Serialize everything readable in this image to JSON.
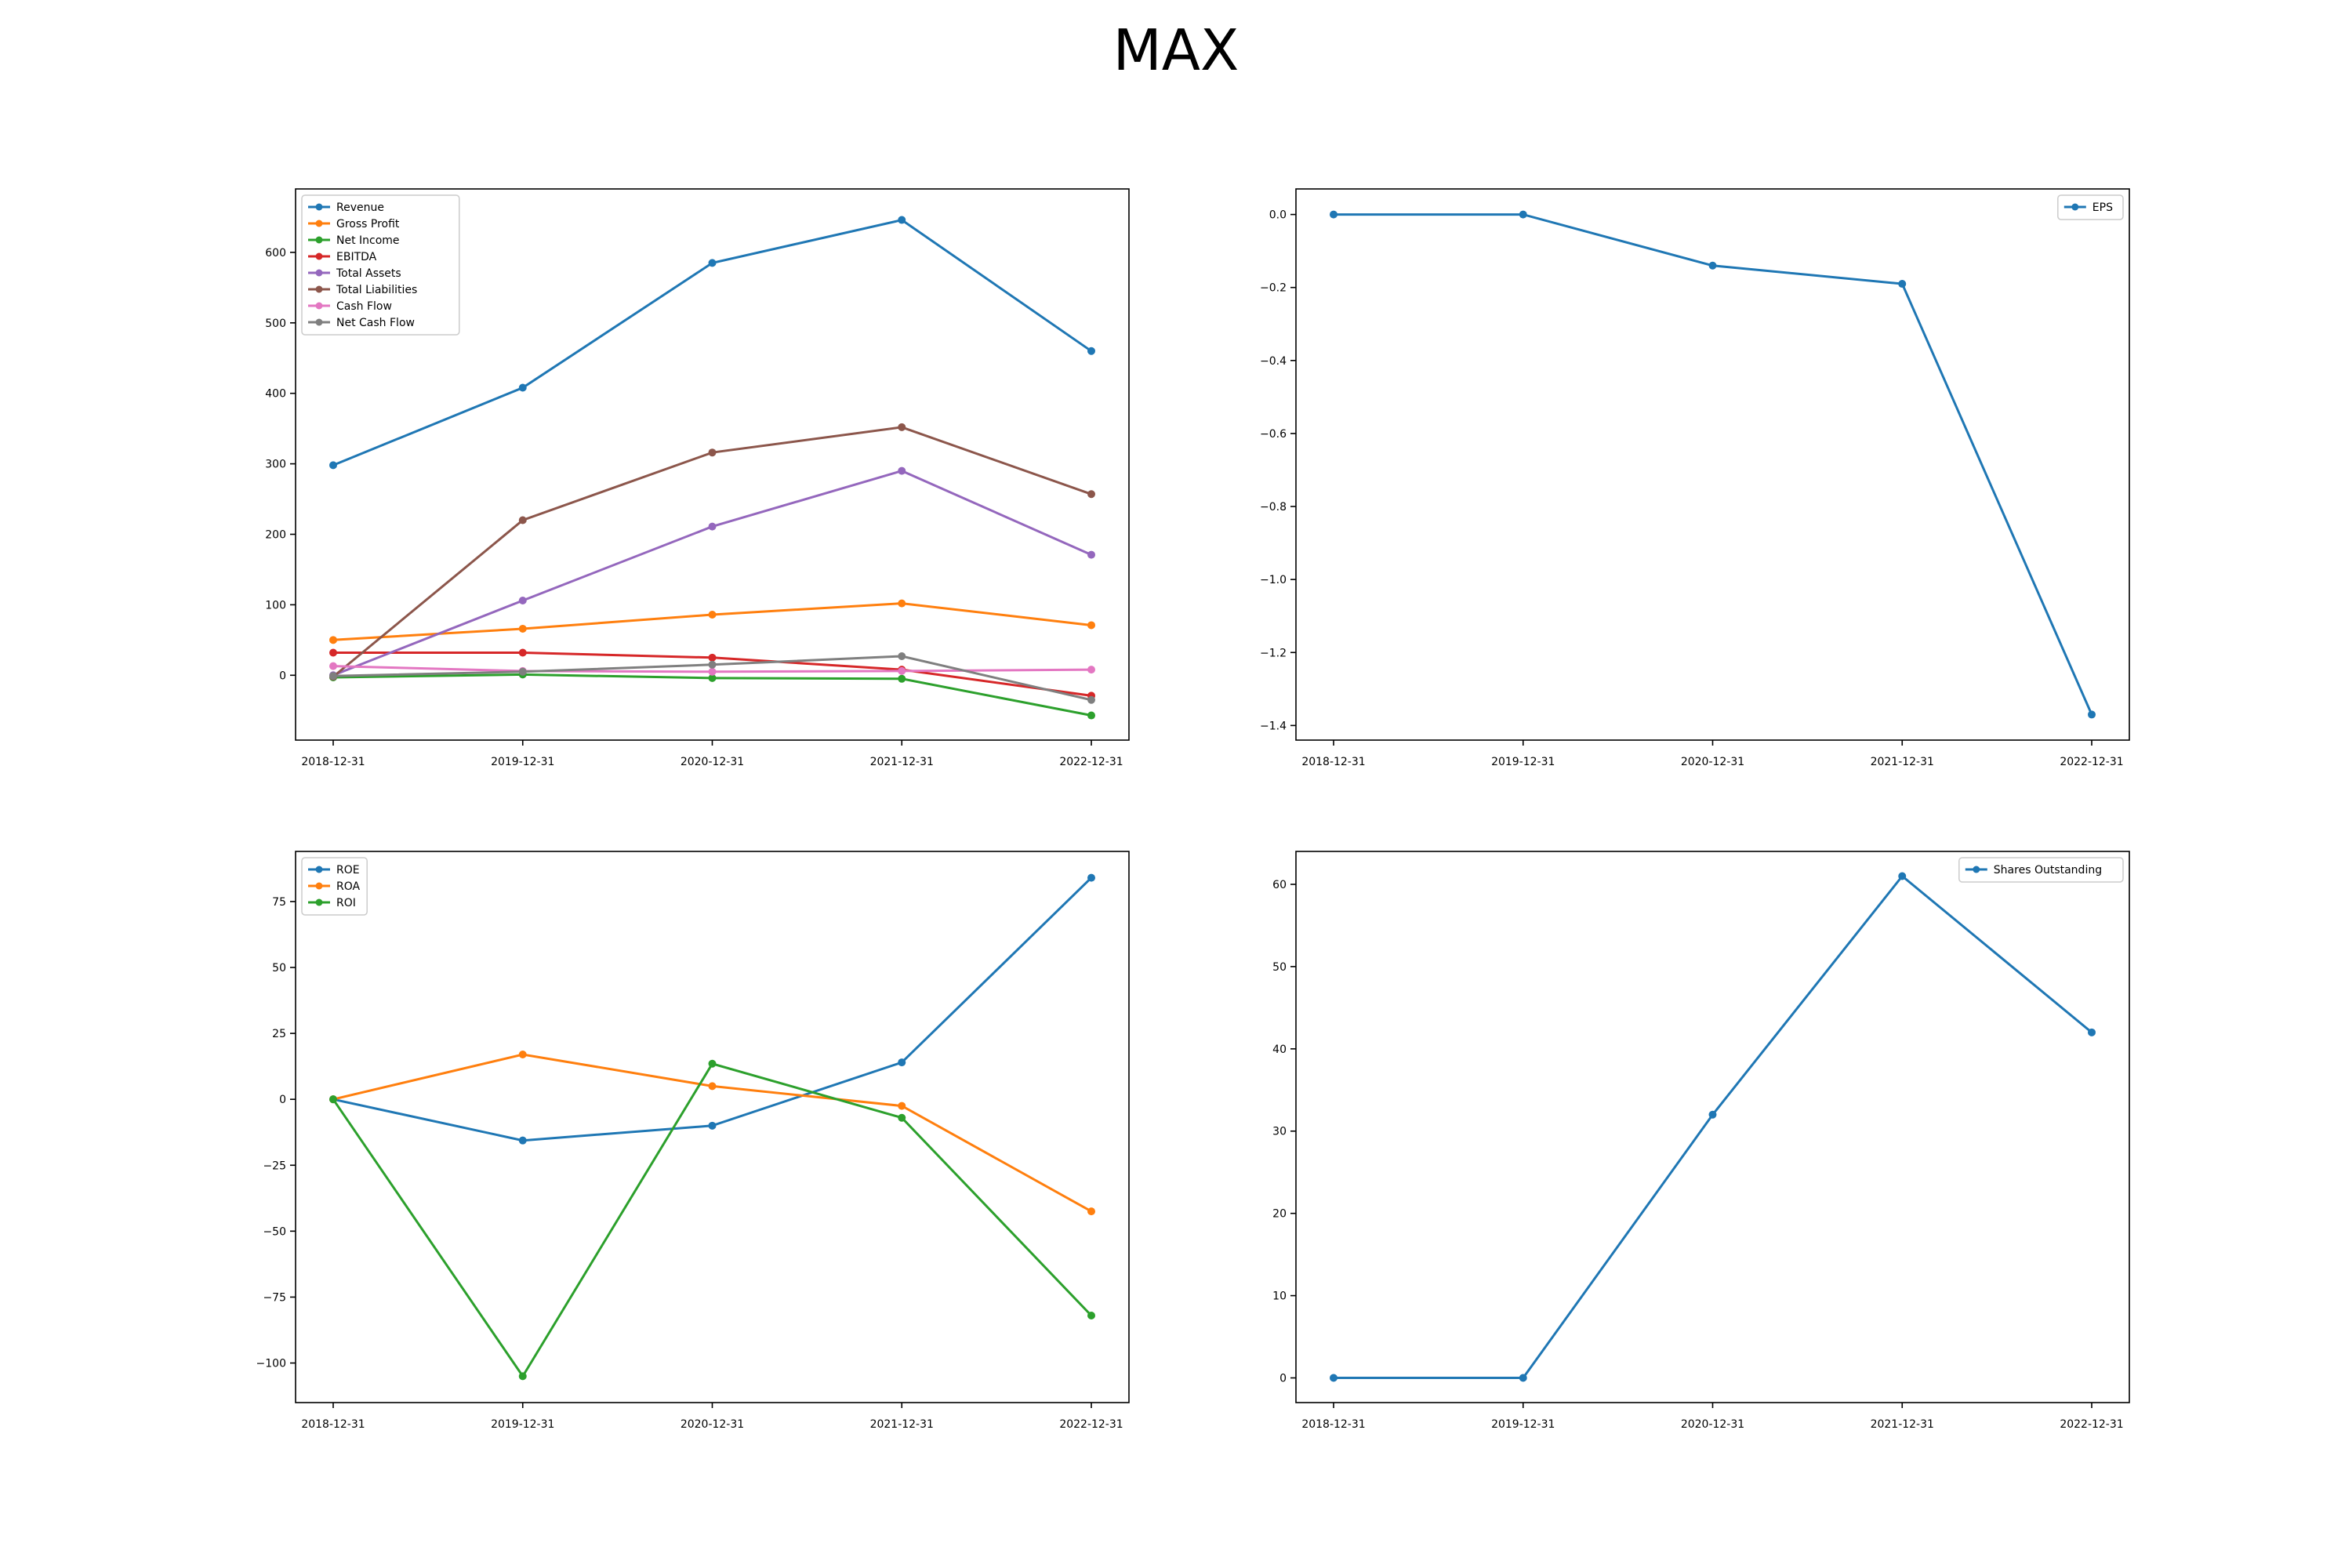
{
  "title": "MAX",
  "chart_data": [
    {
      "type": "line",
      "x": [
        "2018-12-31",
        "2019-12-31",
        "2020-12-31",
        "2021-12-31",
        "2022-12-31"
      ],
      "ylim": [
        -92,
        690
      ],
      "yticks": [
        0,
        100,
        200,
        300,
        400,
        500,
        600
      ],
      "ytick_labels": [
        "0",
        "100",
        "200",
        "300",
        "400",
        "500",
        "600"
      ],
      "legend": "top-left",
      "series": [
        {
          "name": "Revenue",
          "color": "#1f77b4",
          "values": [
            298,
            408,
            585,
            646,
            460
          ]
        },
        {
          "name": "Gross Profit",
          "color": "#ff7f0e",
          "values": [
            50,
            66,
            86,
            102,
            71
          ]
        },
        {
          "name": "Net Income",
          "color": "#2ca02c",
          "values": [
            -3,
            1,
            -4,
            -5,
            -57
          ]
        },
        {
          "name": "EBITDA",
          "color": "#d62728",
          "values": [
            32,
            32,
            25,
            8,
            -29
          ]
        },
        {
          "name": "Total Assets",
          "color": "#9467bd",
          "values": [
            0,
            106,
            211,
            290,
            171
          ]
        },
        {
          "name": "Total Liabilities",
          "color": "#8c564b",
          "values": [
            -2,
            220,
            316,
            352,
            257
          ]
        },
        {
          "name": "Cash Flow",
          "color": "#e377c2",
          "values": [
            13,
            6,
            5,
            6,
            8
          ]
        },
        {
          "name": "Net Cash Flow",
          "color": "#7f7f7f",
          "values": [
            -1,
            5,
            15,
            27,
            -35
          ]
        }
      ]
    },
    {
      "type": "line",
      "x": [
        "2018-12-31",
        "2019-12-31",
        "2020-12-31",
        "2021-12-31",
        "2022-12-31"
      ],
      "ylim": [
        -1.44,
        0.07
      ],
      "yticks": [
        0.0,
        -0.2,
        -0.4,
        -0.6,
        -0.8,
        -1.0,
        -1.2,
        -1.4
      ],
      "ytick_labels": [
        "0.0",
        "−0.2",
        "−0.4",
        "−0.6",
        "−0.8",
        "−1.0",
        "−1.2",
        "−1.4"
      ],
      "legend": "top-right",
      "series": [
        {
          "name": "EPS",
          "color": "#1f77b4",
          "values": [
            0.0,
            0.0,
            -0.14,
            -0.19,
            -1.37
          ]
        }
      ]
    },
    {
      "type": "line",
      "x": [
        "2018-12-31",
        "2019-12-31",
        "2020-12-31",
        "2021-12-31",
        "2022-12-31"
      ],
      "ylim": [
        -115,
        94
      ],
      "yticks": [
        75,
        50,
        25,
        0,
        -25,
        -50,
        -75,
        -100
      ],
      "ytick_labels": [
        "75",
        "50",
        "25",
        "0",
        "−25",
        "−50",
        "−75",
        "−100"
      ],
      "legend": "top-left",
      "series": [
        {
          "name": "ROE",
          "color": "#1f77b4",
          "values": [
            0,
            -15.6,
            -10,
            14,
            84
          ]
        },
        {
          "name": "ROA",
          "color": "#ff7f0e",
          "values": [
            0,
            17,
            5,
            -2.5,
            -42.5
          ]
        },
        {
          "name": "ROI",
          "color": "#2ca02c",
          "values": [
            0,
            -105,
            13.5,
            -7,
            -82
          ]
        }
      ]
    },
    {
      "type": "line",
      "x": [
        "2018-12-31",
        "2019-12-31",
        "2020-12-31",
        "2021-12-31",
        "2022-12-31"
      ],
      "ylim": [
        -3,
        64
      ],
      "yticks": [
        0,
        10,
        20,
        30,
        40,
        50,
        60
      ],
      "ytick_labels": [
        "0",
        "10",
        "20",
        "30",
        "40",
        "50",
        "60"
      ],
      "legend": "top-right",
      "series": [
        {
          "name": "Shares Outstanding",
          "color": "#1f77b4",
          "values": [
            0,
            0,
            32,
            61,
            42
          ]
        }
      ]
    }
  ]
}
